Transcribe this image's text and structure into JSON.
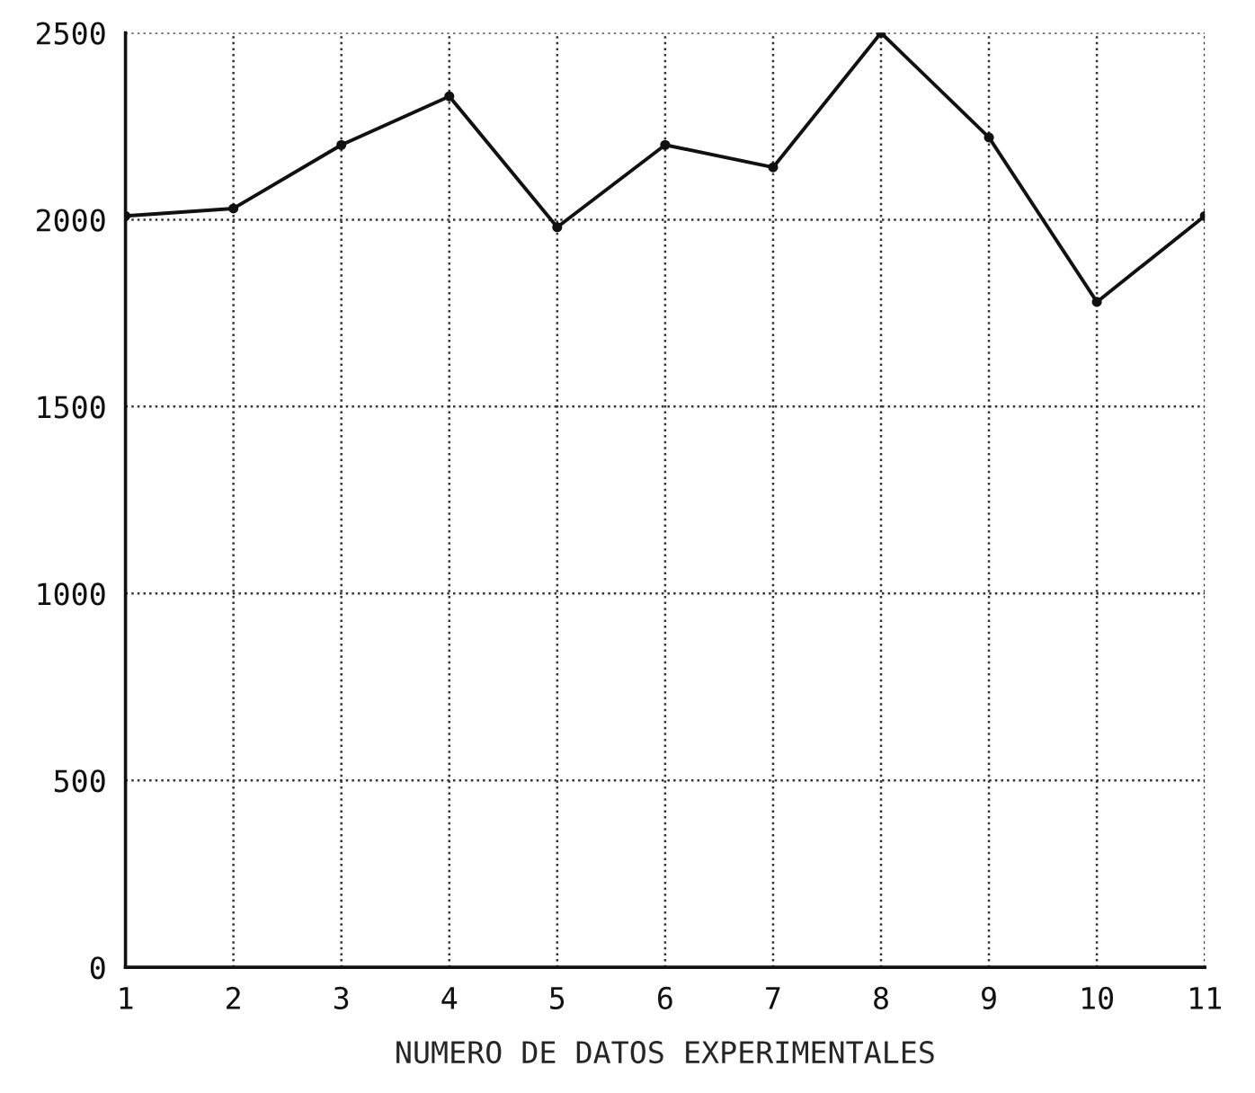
{
  "chart_data": {
    "type": "line",
    "xlabel": "NUMERO DE DATOS EXPERIMENTALES",
    "x": [
      1,
      2,
      3,
      4,
      5,
      6,
      7,
      8,
      9,
      10,
      11
    ],
    "series": [
      {
        "color": "#111111",
        "values": [
          2010,
          2030,
          2200,
          2330,
          1980,
          2200,
          2140,
          2500,
          2220,
          1780,
          2010
        ]
      }
    ],
    "xlim": [
      1,
      11
    ],
    "xticks": [
      1,
      2,
      3,
      4,
      5,
      6,
      7,
      8,
      9,
      10,
      11
    ],
    "ylim": [
      0,
      2500
    ],
    "yticks": [
      0,
      500,
      1000,
      1500,
      2000,
      2500
    ],
    "grid": true,
    "marker": "circle",
    "line_style": "solid"
  }
}
